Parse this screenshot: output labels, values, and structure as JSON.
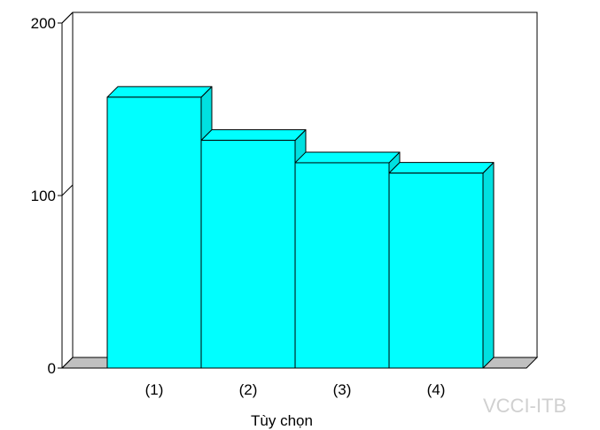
{
  "chart_data": {
    "type": "bar",
    "style": "3d",
    "categories": [
      "(1)",
      "(2)",
      "(3)",
      "(4)"
    ],
    "values": [
      157,
      132,
      119,
      113
    ],
    "xlabel": "Tùy chọn",
    "ylabel": "",
    "title": "",
    "ylim": [
      0,
      200
    ],
    "yticks": [
      0,
      100,
      200
    ],
    "grid": true,
    "legend": "none",
    "colors": {
      "bar_face": "#00ffff",
      "bar_side": "#00e0e0",
      "bar_outline": "#000000",
      "floor": "#c0c0c0",
      "grid": "#c8c8c8"
    }
  },
  "watermark": "VCCI-ITB"
}
